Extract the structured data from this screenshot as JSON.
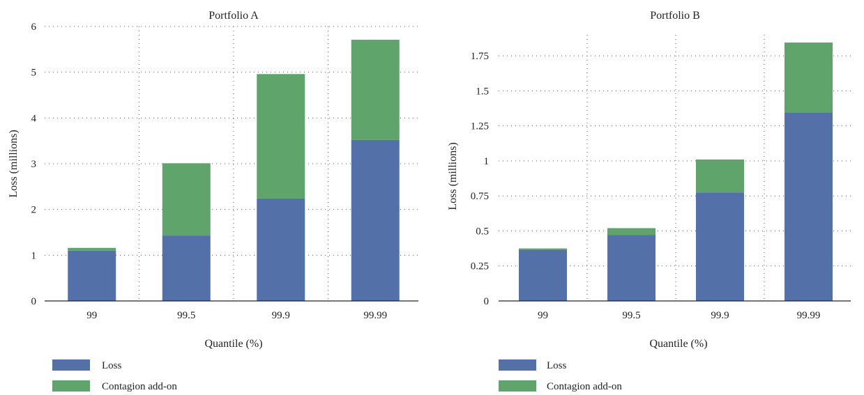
{
  "chart_data": [
    {
      "type": "bar",
      "stacked": true,
      "title": "Portfolio A",
      "xlabel": "Quantile (%)",
      "ylabel": "Loss (millions)",
      "categories": [
        "99",
        "99.5",
        "99.9",
        "99.99"
      ],
      "yticks": [
        "0",
        "1",
        "2",
        "3",
        "4",
        "5",
        "6"
      ],
      "ylim": [
        0,
        6
      ],
      "grid": true,
      "legend_position": "bottom-left",
      "series": [
        {
          "name": "Loss",
          "color": "#5470a8",
          "values": [
            1.1,
            1.43,
            2.24,
            3.52
          ]
        },
        {
          "name": "Contagion add-on",
          "color": "#5fa46a",
          "values": [
            0.06,
            1.58,
            2.72,
            2.19
          ]
        }
      ]
    },
    {
      "type": "bar",
      "stacked": true,
      "title": "Portfolio B",
      "xlabel": "Quantile (%)",
      "ylabel": "Loss (millions)",
      "categories": [
        "99",
        "99.5",
        "99.9",
        "99.99"
      ],
      "yticks": [
        "0",
        "0.25",
        "0.5",
        "0.75",
        "1",
        "1.25",
        "1.5",
        "1.75"
      ],
      "ylim": [
        0,
        1.9
      ],
      "grid": true,
      "legend_position": "bottom-left",
      "series": [
        {
          "name": "Loss",
          "color": "#5470a8",
          "values": [
            0.365,
            0.47,
            0.775,
            1.345
          ]
        },
        {
          "name": "Contagion add-on",
          "color": "#5fa46a",
          "values": [
            0.01,
            0.05,
            0.235,
            0.5
          ]
        }
      ]
    }
  ]
}
